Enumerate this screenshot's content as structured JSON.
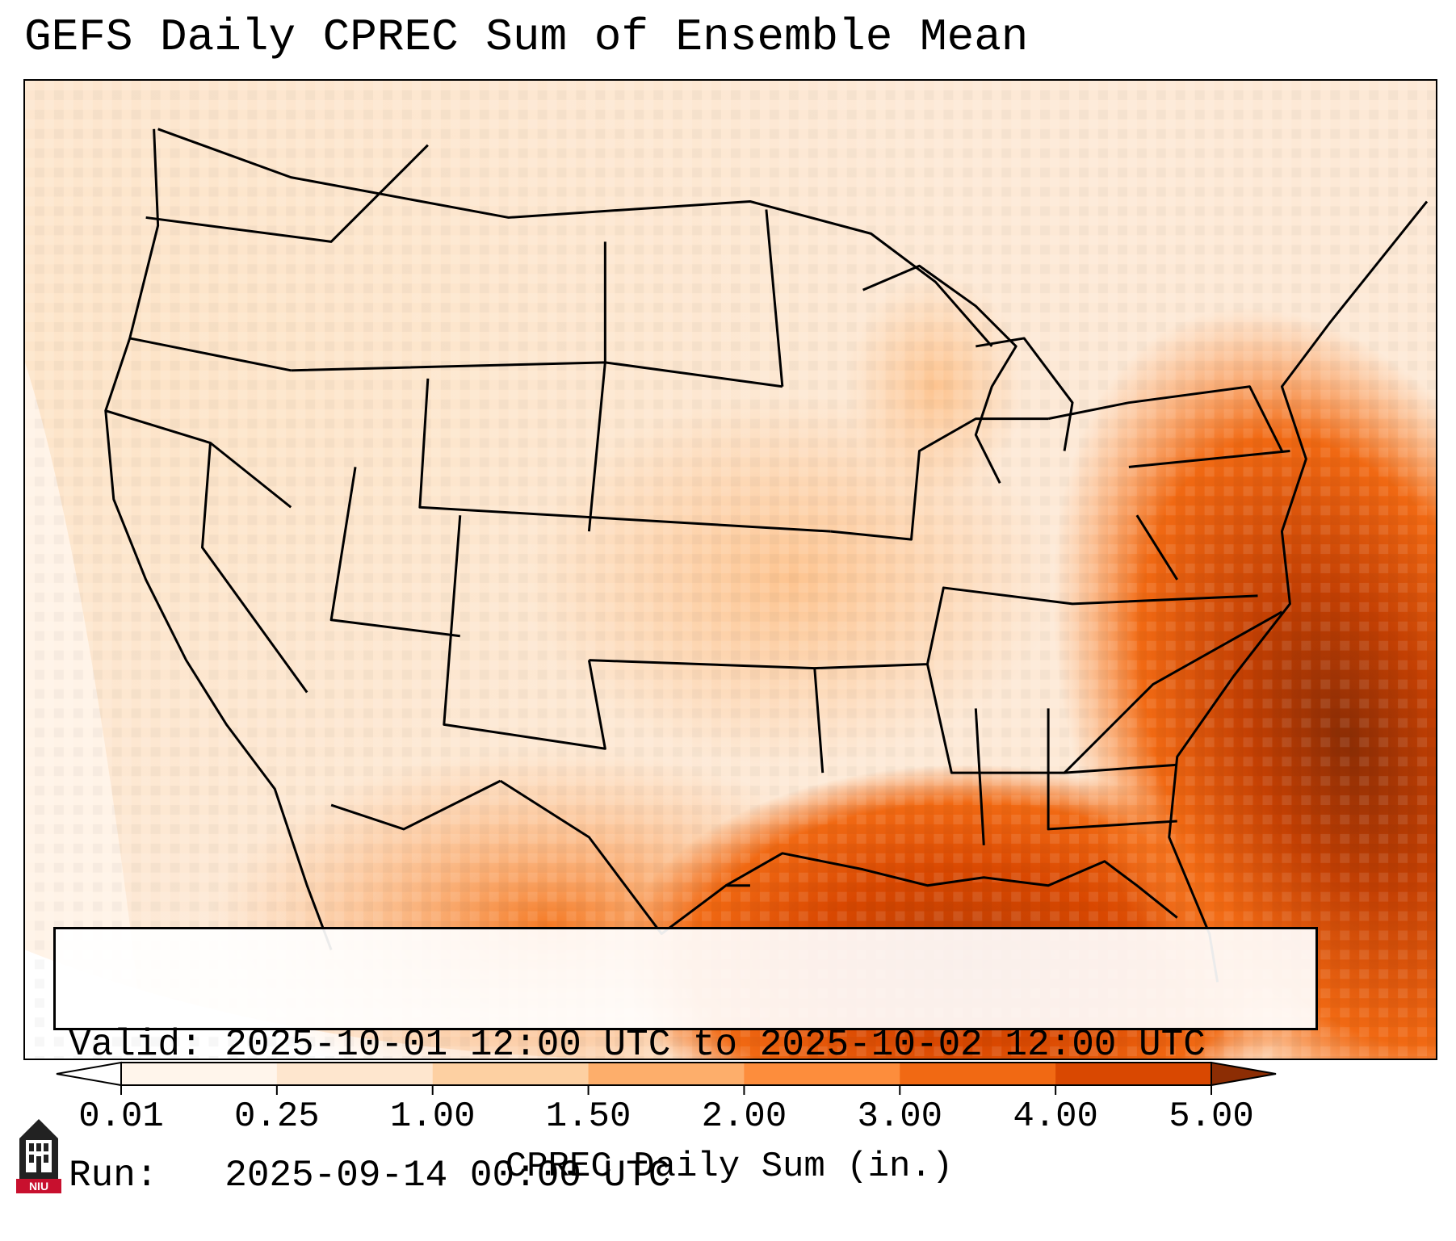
{
  "title": "GEFS Daily CPREC Sum of Ensemble Mean",
  "info": {
    "valid_line": "Valid: 2025-10-01 12:00 UTC to 2025-10-02 12:00 UTC",
    "run_line": "Run:   2025-09-14 00:00 UTC"
  },
  "colorbar": {
    "label": "CPREC Daily Sum (in.)",
    "ticks": [
      "0.01",
      "0.25",
      "1.00",
      "1.50",
      "2.00",
      "3.00",
      "4.00",
      "5.00"
    ],
    "colors": [
      "#fff5eb",
      "#fee6ce",
      "#fdd0a2",
      "#fdae6b",
      "#fd8d3c",
      "#f16913",
      "#d94801",
      "#8c2d04"
    ],
    "under_color": "#ffffff",
    "over_color": "#8c2d04"
  },
  "logo": {
    "text": "NIU",
    "icon": "niu-tower-logo"
  },
  "map": {
    "region": "Contiguous United States",
    "borders": "state and country boundaries"
  }
}
